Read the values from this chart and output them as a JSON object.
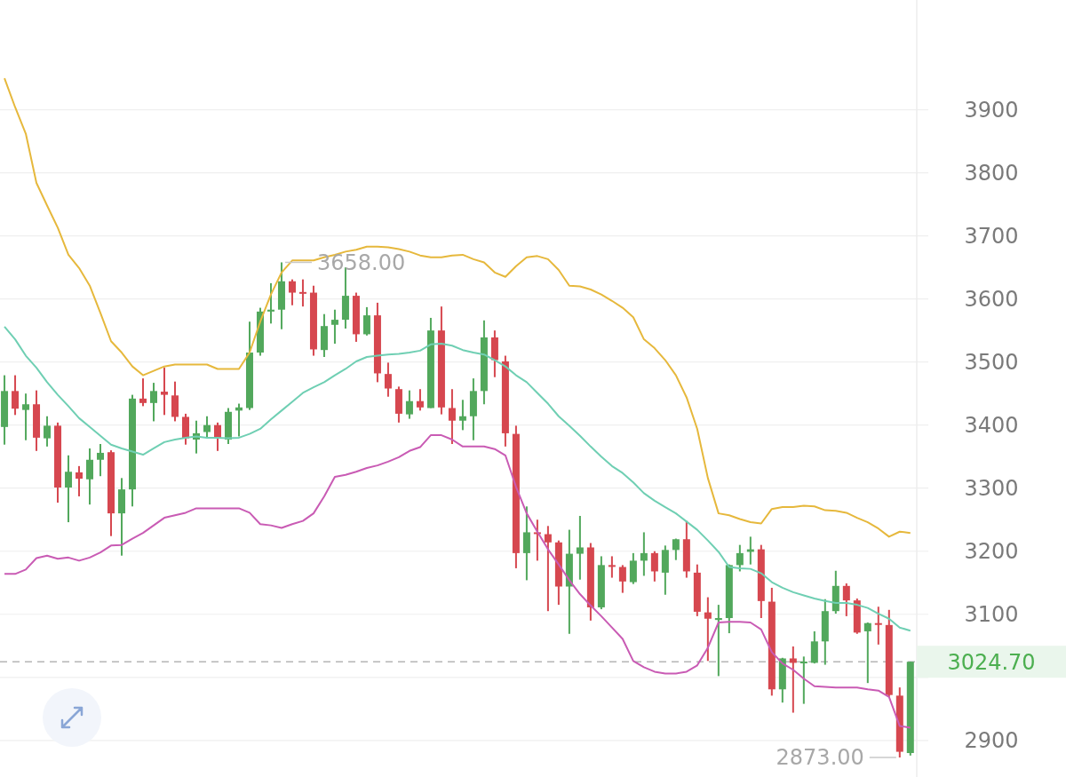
{
  "chart_data": {
    "type": "candlestick",
    "categories": [
      null,
      null,
      null,
      null,
      null,
      null,
      null,
      null,
      null,
      null,
      null,
      null,
      null,
      null,
      null,
      null,
      null,
      null,
      null,
      null,
      null,
      null,
      null,
      null,
      null,
      null,
      null,
      null,
      null,
      null,
      null,
      null,
      null,
      null,
      null,
      null,
      null,
      null,
      null,
      null,
      null,
      null,
      null,
      null,
      null,
      null,
      null,
      null,
      null,
      null,
      null,
      null,
      null,
      null,
      null,
      null,
      null,
      null,
      null,
      null,
      null,
      null,
      null,
      null,
      null,
      null,
      null,
      null,
      null,
      null,
      null,
      null,
      null,
      null,
      null,
      null,
      null,
      null,
      null,
      null,
      null,
      null,
      null,
      null,
      null,
      null
    ],
    "ohlc": [
      [
        3397,
        3479,
        3369,
        3454
      ],
      [
        3454,
        3479,
        3416,
        3426
      ],
      [
        3424,
        3450,
        3376,
        3433
      ],
      [
        3433,
        3455,
        3359,
        3380
      ],
      [
        3379,
        3414,
        3366,
        3399
      ],
      [
        3399,
        3404,
        3277,
        3301
      ],
      [
        3301,
        3352,
        3246,
        3326
      ],
      [
        3325,
        3335,
        3287,
        3315
      ],
      [
        3314,
        3363,
        3274,
        3345
      ],
      [
        3345,
        3370,
        3319,
        3356
      ],
      [
        3357,
        3360,
        3224,
        3260
      ],
      [
        3260,
        3316,
        3193,
        3298
      ],
      [
        3298,
        3448,
        3271,
        3442
      ],
      [
        3442,
        3474,
        3430,
        3435
      ],
      [
        3435,
        3467,
        3406,
        3454
      ],
      [
        3453,
        3491,
        3416,
        3448
      ],
      [
        3447,
        3469,
        3406,
        3413
      ],
      [
        3413,
        3418,
        3369,
        3379
      ],
      [
        3377,
        3407,
        3355,
        3387
      ],
      [
        3389,
        3414,
        3380,
        3400
      ],
      [
        3400,
        3404,
        3359,
        3379
      ],
      [
        3377,
        3427,
        3370,
        3421
      ],
      [
        3423,
        3434,
        3382,
        3428
      ],
      [
        3427,
        3564,
        3424,
        3515
      ],
      [
        3515,
        3586,
        3510,
        3580
      ],
      [
        3580,
        3625,
        3561,
        3583
      ],
      [
        3583,
        3658,
        3552,
        3628
      ],
      [
        3628,
        3631,
        3590,
        3610
      ],
      [
        3611,
        3631,
        3588,
        3610
      ],
      [
        3610,
        3621,
        3510,
        3520
      ],
      [
        3519,
        3576,
        3508,
        3557
      ],
      [
        3559,
        3583,
        3529,
        3567
      ],
      [
        3567,
        3650,
        3553,
        3605
      ],
      [
        3605,
        3610,
        3532,
        3544
      ],
      [
        3544,
        3587,
        3542,
        3574
      ],
      [
        3574,
        3594,
        3468,
        3482
      ],
      [
        3481,
        3499,
        3445,
        3458
      ],
      [
        3457,
        3461,
        3404,
        3418
      ],
      [
        3417,
        3455,
        3410,
        3438
      ],
      [
        3438,
        3457,
        3423,
        3428
      ],
      [
        3427,
        3570,
        3427,
        3550
      ],
      [
        3550,
        3588,
        3417,
        3428
      ],
      [
        3427,
        3457,
        3370,
        3407
      ],
      [
        3407,
        3440,
        3392,
        3414
      ],
      [
        3414,
        3474,
        3376,
        3454
      ],
      [
        3454,
        3566,
        3433,
        3539
      ],
      [
        3539,
        3550,
        3476,
        3503
      ],
      [
        3501,
        3510,
        3366,
        3387
      ],
      [
        3386,
        3399,
        3173,
        3197
      ],
      [
        3197,
        3271,
        3154,
        3230
      ],
      [
        3230,
        3250,
        3185,
        3229
      ],
      [
        3227,
        3240,
        3105,
        3214
      ],
      [
        3214,
        3217,
        3115,
        3144
      ],
      [
        3144,
        3234,
        3069,
        3196
      ],
      [
        3196,
        3256,
        3155,
        3206
      ],
      [
        3206,
        3213,
        3090,
        3111
      ],
      [
        3111,
        3192,
        3108,
        3178
      ],
      [
        3178,
        3192,
        3158,
        3176
      ],
      [
        3175,
        3178,
        3134,
        3152
      ],
      [
        3151,
        3197,
        3148,
        3185
      ],
      [
        3185,
        3230,
        3161,
        3197
      ],
      [
        3197,
        3200,
        3152,
        3168
      ],
      [
        3166,
        3209,
        3131,
        3202
      ],
      [
        3202,
        3220,
        3186,
        3219
      ],
      [
        3219,
        3248,
        3158,
        3168
      ],
      [
        3166,
        3179,
        3097,
        3104
      ],
      [
        3103,
        3127,
        3026,
        3093
      ],
      [
        3091,
        3115,
        3002,
        3094
      ],
      [
        3094,
        3179,
        3070,
        3178
      ],
      [
        3178,
        3210,
        3168,
        3197
      ],
      [
        3199,
        3223,
        3179,
        3203
      ],
      [
        3203,
        3210,
        3094,
        3121
      ],
      [
        3120,
        3142,
        2971,
        2981
      ],
      [
        2981,
        3031,
        2960,
        3030
      ],
      [
        3030,
        3049,
        2944,
        3023
      ],
      [
        3023,
        3033,
        2958,
        3025
      ],
      [
        3023,
        3073,
        3022,
        3057
      ],
      [
        3057,
        3124,
        3020,
        3105
      ],
      [
        3105,
        3169,
        3101,
        3145
      ],
      [
        3145,
        3149,
        3097,
        3122
      ],
      [
        3122,
        3125,
        3069,
        3071
      ],
      [
        3073,
        3087,
        2991,
        3086
      ],
      [
        3086,
        3112,
        3052,
        3084
      ],
      [
        3083,
        3107,
        2969,
        2972
      ],
      [
        2971,
        2984,
        2873,
        2882
      ],
      [
        2880,
        3024.7,
        2876,
        3024.7
      ]
    ],
    "colors": [
      "#52a85c",
      "#d6474f",
      "#52a85c",
      "#d6474f",
      "#52a85c",
      "#d6474f",
      "#52a85c",
      "#d6474f",
      "#52a85c",
      "#52a85c",
      "#d6474f",
      "#52a85c",
      "#52a85c",
      "#d6474f",
      "#52a85c",
      "#d6474f",
      "#d6474f",
      "#d6474f",
      "#52a85c",
      "#52a85c",
      "#d6474f",
      "#52a85c",
      "#52a85c",
      "#52a85c",
      "#52a85c",
      "#52a85c",
      "#52a85c",
      "#d6474f",
      "#d6474f",
      "#d6474f",
      "#52a85c",
      "#52a85c",
      "#52a85c",
      "#d6474f",
      "#52a85c",
      "#d6474f",
      "#d6474f",
      "#d6474f",
      "#52a85c",
      "#d6474f",
      "#52a85c",
      "#d6474f",
      "#d6474f",
      "#52a85c",
      "#52a85c",
      "#52a85c",
      "#d6474f",
      "#d6474f",
      "#d6474f",
      "#52a85c",
      "#d6474f",
      "#d6474f",
      "#d6474f",
      "#52a85c",
      "#52a85c",
      "#d6474f",
      "#52a85c",
      "#d6474f",
      "#d6474f",
      "#52a85c",
      "#52a85c",
      "#d6474f",
      "#52a85c",
      "#52a85c",
      "#d6474f",
      "#d6474f",
      "#d6474f",
      "#52a85c",
      "#52a85c",
      "#52a85c",
      "#52a85c",
      "#d6474f",
      "#d6474f",
      "#52a85c",
      "#d6474f",
      "#52a85c",
      "#52a85c",
      "#52a85c",
      "#52a85c",
      "#d6474f",
      "#d6474f",
      "#52a85c",
      "#d6474f",
      "#d6474f",
      "#d6474f",
      "#52a85c"
    ],
    "series": [
      {
        "type": "line",
        "color": "#e6b83c",
        "values": [
          3950,
          3904,
          3862,
          3784,
          3748,
          3713,
          3670,
          3649,
          3621,
          3578,
          3533,
          3515,
          3493,
          3479,
          3486,
          3493,
          3496,
          3496,
          3496,
          3496,
          3489,
          3489,
          3489,
          3515,
          3564,
          3607,
          3642,
          3661,
          3661,
          3661,
          3666,
          3670,
          3675,
          3678,
          3683,
          3683,
          3682,
          3679,
          3675,
          3669,
          3666,
          3666,
          3669,
          3670,
          3663,
          3658,
          3642,
          3635,
          3652,
          3666,
          3668,
          3663,
          3646,
          3621,
          3620,
          3615,
          3607,
          3597,
          3586,
          3571,
          3536,
          3522,
          3503,
          3479,
          3444,
          3394,
          3316,
          3260,
          3257,
          3251,
          3246,
          3244,
          3267,
          3270,
          3270,
          3272,
          3271,
          3265,
          3264,
          3261,
          3253,
          3246,
          3236,
          3223,
          3231,
          3229
        ]
      },
      {
        "type": "line",
        "color": "#6fcfb3",
        "values": [
          3556,
          3536,
          3510,
          3491,
          3468,
          3448,
          3430,
          3411,
          3397,
          3383,
          3369,
          3363,
          3358,
          3353,
          3363,
          3373,
          3377,
          3380,
          3382,
          3380,
          3380,
          3379,
          3380,
          3386,
          3394,
          3409,
          3423,
          3437,
          3451,
          3460,
          3468,
          3479,
          3489,
          3501,
          3508,
          3510,
          3512,
          3513,
          3515,
          3518,
          3528,
          3529,
          3526,
          3519,
          3515,
          3512,
          3503,
          3493,
          3479,
          3468,
          3451,
          3434,
          3414,
          3399,
          3383,
          3366,
          3350,
          3335,
          3324,
          3309,
          3292,
          3280,
          3270,
          3260,
          3247,
          3234,
          3217,
          3199,
          3175,
          3173,
          3172,
          3165,
          3151,
          3142,
          3135,
          3130,
          3125,
          3121,
          3118,
          3118,
          3115,
          3110,
          3101,
          3093,
          3079,
          3074
        ]
      },
      {
        "type": "line",
        "color": "#c95bb4",
        "values": [
          3164,
          3164,
          3171,
          3189,
          3193,
          3188,
          3190,
          3185,
          3190,
          3198,
          3209,
          3210,
          3220,
          3229,
          3241,
          3253,
          3257,
          3261,
          3268,
          3268,
          3268,
          3268,
          3268,
          3261,
          3243,
          3241,
          3237,
          3243,
          3248,
          3260,
          3287,
          3318,
          3321,
          3326,
          3332,
          3336,
          3342,
          3349,
          3359,
          3365,
          3384,
          3384,
          3377,
          3366,
          3366,
          3366,
          3362,
          3352,
          3302,
          3260,
          3231,
          3203,
          3179,
          3154,
          3132,
          3114,
          3097,
          3079,
          3061,
          3026,
          3016,
          3009,
          3006,
          3006,
          3009,
          3019,
          3047,
          3087,
          3088,
          3088,
          3087,
          3076,
          3040,
          3022,
          3012,
          2998,
          2986,
          2985,
          2984,
          2984,
          2984,
          2981,
          2979,
          2969,
          2923,
          2920
        ]
      }
    ],
    "ylim": [
      2842,
      4074
    ],
    "yticks": [
      2900,
      {
        "value": 3000,
        "label": null
      },
      3100,
      3200,
      3300,
      3400,
      3500,
      3600,
      3700,
      3800,
      3900
    ],
    "grid": "y",
    "tick_labels": "y",
    "ref_lines": [
      {
        "axis": "y",
        "value": 3024.7,
        "label": "3024.70",
        "color": "#b5b5b5",
        "line_style": "dashed"
      }
    ],
    "annotations": [
      "3658.00",
      "2873.00"
    ]
  }
}
